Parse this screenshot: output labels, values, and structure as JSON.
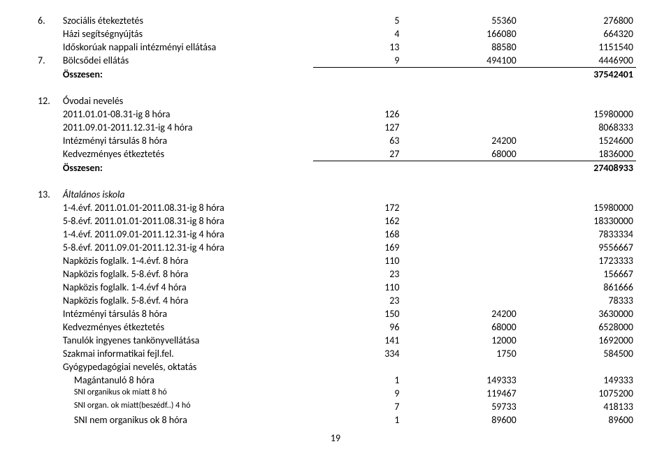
{
  "rows": [
    {
      "n": "6.",
      "label": "Szociális étekeztetés",
      "a": "5",
      "b": "55360",
      "c": "276800"
    },
    {
      "n": "",
      "label": "Házi segítségnyújtás",
      "a": "4",
      "b": "166080",
      "c": "664320"
    },
    {
      "n": "",
      "label": "Időskorúak nappali intézményi ellátása",
      "a": "13",
      "b": "88580",
      "c": "1151540"
    },
    {
      "n": "7.",
      "label": "Bölcsődei ellátás",
      "a": "9",
      "b": "494100",
      "c": "4446900"
    },
    {
      "n": "",
      "label": "Összesen:",
      "bold": true,
      "hr": true,
      "a": "",
      "b": "",
      "c": "37542401"
    },
    {
      "spacer": true
    },
    {
      "n": "12.",
      "label": "Óvodai nevelés",
      "a": "",
      "b": "",
      "c": ""
    },
    {
      "n": "",
      "label": "2011.01.01-08.31-ig 8 hóra",
      "a": "126",
      "b": "",
      "c": "15980000"
    },
    {
      "n": "",
      "label": "2011.09.01-2011.12.31-ig 4 hóra",
      "a": "127",
      "b": "",
      "c": "8068333"
    },
    {
      "n": "",
      "label": "Intézményi társulás 8 hóra",
      "a": "63",
      "b": "24200",
      "c": "1524600"
    },
    {
      "n": "",
      "label": "Kedvezményes étkeztetés",
      "a": "27",
      "b": "68000",
      "c": "1836000"
    },
    {
      "n": "",
      "label": "Összesen:",
      "bold": true,
      "hr": true,
      "a": "",
      "b": "",
      "c": "27408933"
    },
    {
      "spacer": true
    },
    {
      "n": "13.",
      "label": "Általános iskola",
      "italic": true,
      "a": "",
      "b": "",
      "c": ""
    },
    {
      "n": "",
      "label": "1-4.évf. 2011.01.01-2011.08.31-ig 8 hóra",
      "a": "172",
      "b": "",
      "c": "15980000"
    },
    {
      "n": "",
      "label": "5-8.évf. 2011.01.01-2011.08.31-ig 8 hóra",
      "a": "162",
      "b": "",
      "c": "18330000"
    },
    {
      "n": "",
      "label": "1-4.évf. 2011.09.01-2011.12.31-ig 4 hóra",
      "a": "168",
      "b": "",
      "c": "7833334"
    },
    {
      "n": "",
      "label": "5-8.évf. 2011.09.01-2011.12.31-ig 4 hóra",
      "a": "169",
      "b": "",
      "c": "9556667"
    },
    {
      "n": "",
      "label": "Napközis foglalk. 1-4.évf. 8 hóra",
      "a": "110",
      "b": "",
      "c": "1723333"
    },
    {
      "n": "",
      "label": "Napközis foglalk. 5-8.évf. 8 hóra",
      "a": "23",
      "b": "",
      "c": "156667"
    },
    {
      "n": "",
      "label": "Napközis foglalk. 1-4.évf  4 hóra",
      "a": "110",
      "b": "",
      "c": "861666"
    },
    {
      "n": "",
      "label": "Napközis foglalk. 5-8.évf.  4 hóra",
      "a": "23",
      "b": "",
      "c": "78333"
    },
    {
      "n": "",
      "label": "Intézményi társulás  8 hóra",
      "a": "150",
      "b": "24200",
      "c": "3630000"
    },
    {
      "n": "",
      "label": "Kedvezményes étkeztetés",
      "a": "96",
      "b": "68000",
      "c": "6528000"
    },
    {
      "n": "",
      "label": "Tanulók ingyenes tankönyvellátása",
      "a": "141",
      "b": "12000",
      "c": "1692000"
    },
    {
      "n": "",
      "label": "Szakmai informatikai fejl.fel.",
      "a": "334",
      "b": "1750",
      "c": "584500"
    },
    {
      "n": "",
      "label": "Gyógypedagógiai nevelés, oktatás",
      "a": "",
      "b": "",
      "c": ""
    },
    {
      "n": "",
      "label": "Magántanuló 8 hóra",
      "indent": 1,
      "a": "1",
      "b": "149333",
      "c": "149333"
    },
    {
      "n": "",
      "label": "SNI organikus ok miatt   8 hó",
      "indent": 1,
      "sm": true,
      "a": "9",
      "b": "119467",
      "c": "1075200"
    },
    {
      "n": "",
      "label": "SNI organ. ok miatt(beszédf..)  4 hó",
      "indent": 1,
      "sm": true,
      "a": "7",
      "b": "59733",
      "c": "418133"
    },
    {
      "n": "",
      "label": "SNI nem organikus ok 8 hóra",
      "indent": 1,
      "a": "1",
      "b": "89600",
      "c": "89600"
    }
  ],
  "pagenum": "19"
}
